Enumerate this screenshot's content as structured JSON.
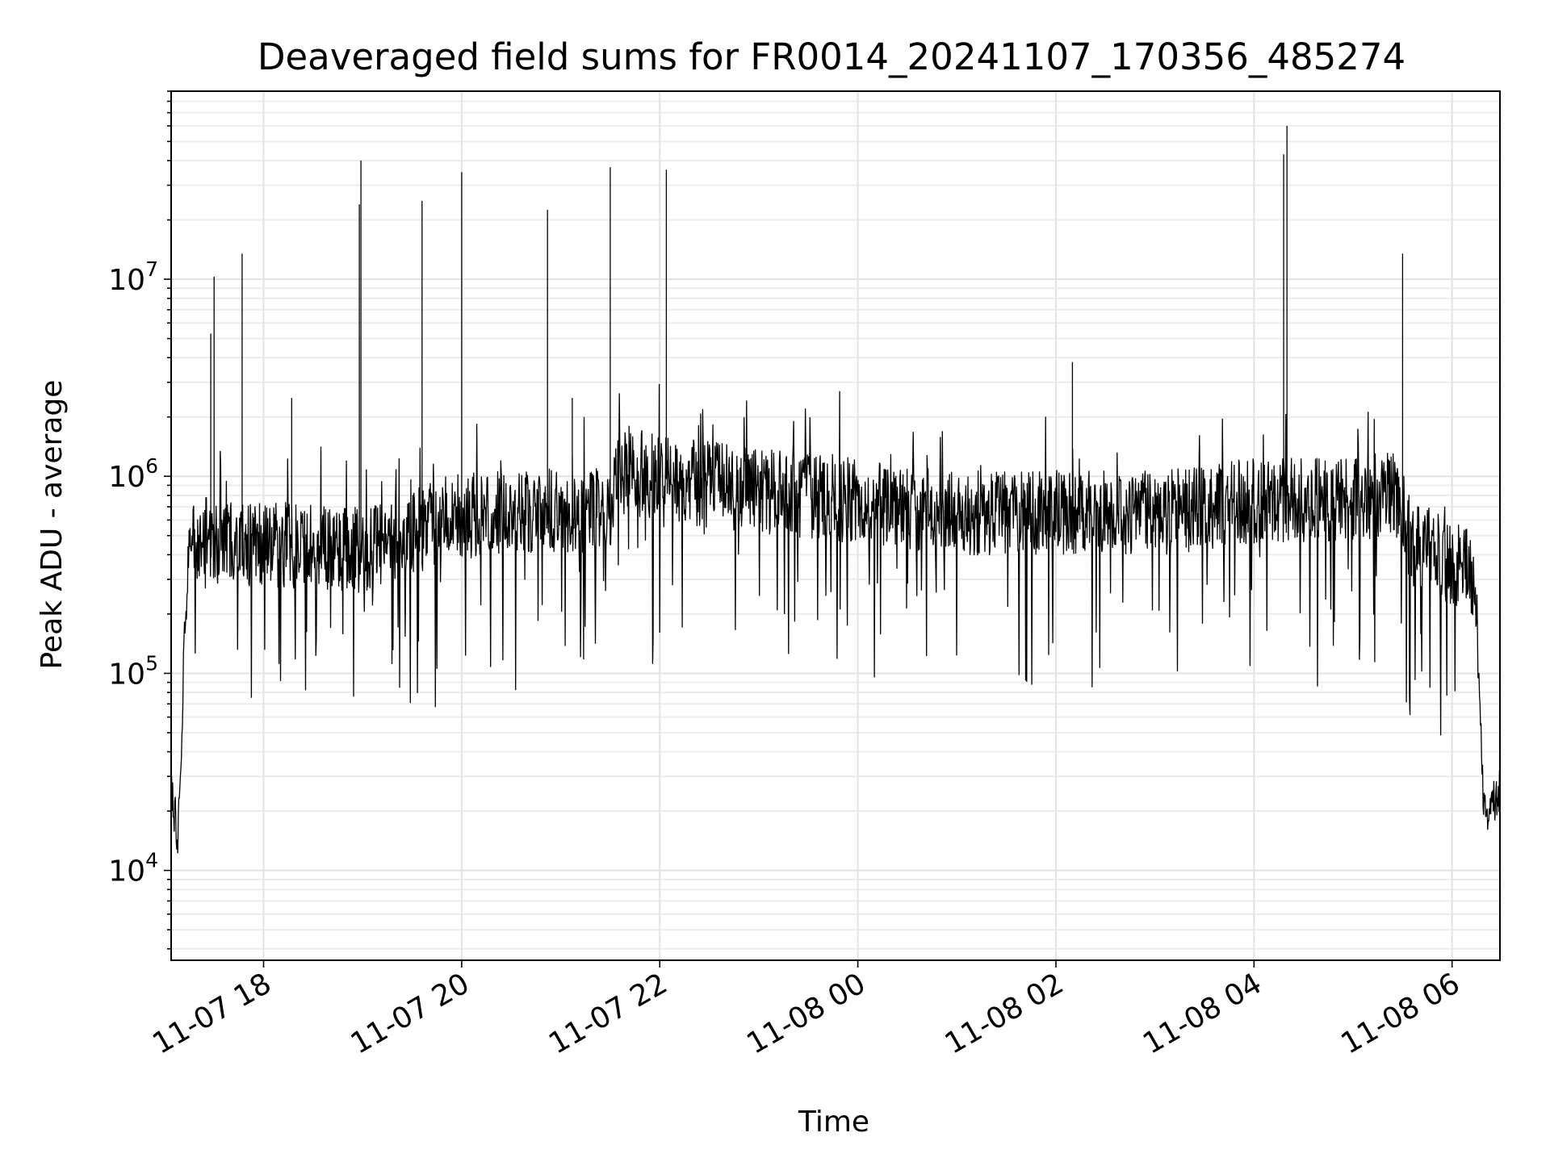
{
  "chart_data": {
    "type": "line",
    "title": "Deaveraged field sums for FR0014_20241107_170356_485274",
    "xlabel": "Time",
    "ylabel": "Peak ADU - average",
    "yscale": "log",
    "ylim": [
      3500,
      90000000
    ],
    "xlim": [
      "2024-11-07 17:04",
      "2024-11-08 06:29"
    ],
    "grid": "on (major and minor)",
    "line_color": "#000000",
    "x_ticks": [
      {
        "t": "2024-11-07 18:00",
        "label": "11-07 18"
      },
      {
        "t": "2024-11-07 20:00",
        "label": "11-07 20"
      },
      {
        "t": "2024-11-07 22:00",
        "label": "11-07 22"
      },
      {
        "t": "2024-11-08 00:00",
        "label": "11-08 00"
      },
      {
        "t": "2024-11-08 02:00",
        "label": "11-08 02"
      },
      {
        "t": "2024-11-08 04:00",
        "label": "11-08 04"
      },
      {
        "t": "2024-11-08 06:00",
        "label": "11-08 06"
      }
    ],
    "y_ticks": [
      {
        "value": 10000,
        "base": "10",
        "exp": "4"
      },
      {
        "value": 100000,
        "base": "10",
        "exp": "5"
      },
      {
        "value": 1000000,
        "base": "10",
        "exp": "6"
      },
      {
        "value": 10000000,
        "base": "10",
        "exp": "7"
      }
    ],
    "baseline_segments": [
      {
        "t": "2024-11-07 17:04",
        "value": 25000
      },
      {
        "t": "2024-11-07 17:06",
        "value": 20000
      },
      {
        "t": "2024-11-07 17:08",
        "value": 14000
      },
      {
        "t": "2024-11-07 17:10",
        "value": 40000
      },
      {
        "t": "2024-11-07 17:12",
        "value": 150000
      },
      {
        "t": "2024-11-07 17:15",
        "value": 480000
      },
      {
        "t": "2024-11-07 19:00",
        "value": 420000
      },
      {
        "t": "2024-11-07 20:00",
        "value": 650000
      },
      {
        "t": "2024-11-07 21:30",
        "value": 650000
      },
      {
        "t": "2024-11-07 21:35",
        "value": 1100000
      },
      {
        "t": "2024-11-07 22:10",
        "value": 950000
      },
      {
        "t": "2024-11-08 01:00",
        "value": 650000
      },
      {
        "t": "2024-11-08 03:00",
        "value": 650000
      },
      {
        "t": "2024-11-08 04:00",
        "value": 750000
      },
      {
        "t": "2024-11-08 05:30",
        "value": 800000
      },
      {
        "t": "2024-11-08 05:32",
        "value": 480000
      },
      {
        "t": "2024-11-08 06:10",
        "value": 330000
      },
      {
        "t": "2024-11-08 06:16",
        "value": 150000
      },
      {
        "t": "2024-11-08 06:19",
        "value": 20000
      },
      {
        "t": "2024-11-08 06:29",
        "value": 25000
      }
    ],
    "spikes": [
      {
        "t": "2024-11-07 17:28",
        "value": 5300000
      },
      {
        "t": "2024-11-07 17:30",
        "value": 10300000
      },
      {
        "t": "2024-11-07 17:47",
        "value": 13500000
      },
      {
        "t": "2024-11-07 18:17",
        "value": 2500000
      },
      {
        "t": "2024-11-07 18:58",
        "value": 24000000
      },
      {
        "t": "2024-11-07 18:59",
        "value": 40000000
      },
      {
        "t": "2024-11-07 19:36",
        "value": 25000000
      },
      {
        "t": "2024-11-07 20:00",
        "value": 35000000
      },
      {
        "t": "2024-11-07 20:52",
        "value": 22500000
      },
      {
        "t": "2024-11-07 21:07",
        "value": 2500000
      },
      {
        "t": "2024-11-07 21:30",
        "value": 37000000
      },
      {
        "t": "2024-11-07 22:04",
        "value": 36000000
      },
      {
        "t": "2024-11-08 02:10",
        "value": 3800000
      },
      {
        "t": "2024-11-08 04:18",
        "value": 43000000
      },
      {
        "t": "2024-11-08 04:20",
        "value": 60000000
      },
      {
        "t": "2024-11-08 05:30",
        "value": 13500000
      }
    ]
  }
}
